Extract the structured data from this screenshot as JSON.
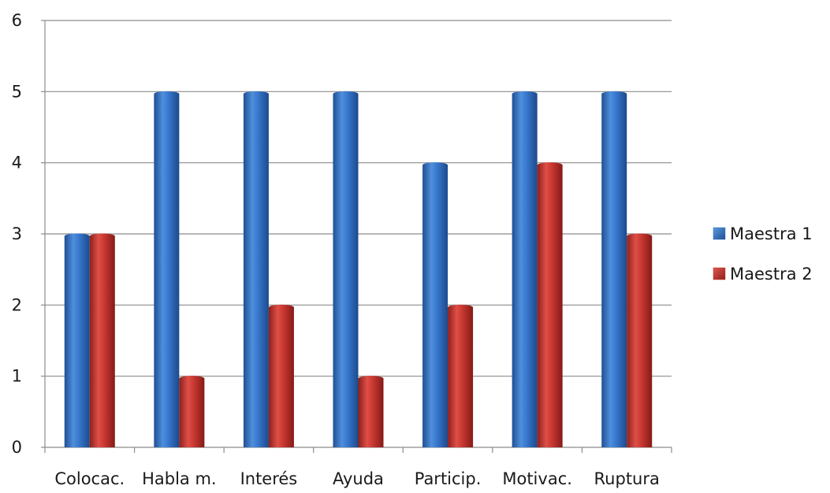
{
  "chart_data": {
    "type": "bar",
    "categories": [
      "Colocac.",
      "Habla m.",
      "Interés",
      "Ayuda",
      "Particip.",
      "Motivac.",
      "Ruptura"
    ],
    "series": [
      {
        "name": "Maestra 1",
        "color": "#2e6fc0",
        "values": [
          3,
          5,
          5,
          5,
          4,
          5,
          5
        ]
      },
      {
        "name": "Maestra 2",
        "color": "#c0302b",
        "values": [
          3,
          1,
          2,
          1,
          2,
          4,
          3
        ]
      }
    ],
    "title": "",
    "xlabel": "",
    "ylabel": "",
    "ylim": [
      0,
      6
    ],
    "yticks": [
      "0",
      "1",
      "2",
      "3",
      "4",
      "5",
      "6"
    ],
    "grid": true,
    "legend_position": "right"
  }
}
